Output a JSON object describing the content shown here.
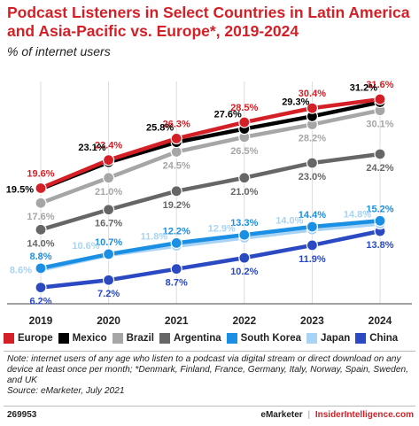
{
  "chart_data": {
    "type": "line",
    "title": "Podcast Listeners in Select Countries in Latin America and Asia-Pacific vs. Europe*, 2019-2024",
    "subtitle": "% of internet users",
    "categories": [
      "2019",
      "2020",
      "2021",
      "2022",
      "2023",
      "2024"
    ],
    "ylim": [
      4,
      34
    ],
    "grid": true,
    "legend_position": "bottom",
    "series": [
      {
        "name": "Europe",
        "color": "#d41f26",
        "values": [
          19.6,
          23.4,
          26.3,
          28.5,
          30.4,
          31.6
        ],
        "labels": [
          "19.6%",
          "23.4%",
          "26.3%",
          "28.5%",
          "30.4%",
          "31.6%"
        ]
      },
      {
        "name": "Mexico",
        "color": "#000000",
        "values": [
          19.5,
          23.1,
          25.8,
          27.6,
          29.3,
          31.2
        ],
        "labels": [
          "19.5%",
          "23.1%",
          "25.8%",
          "27.6%",
          "29.3%",
          "31.2%"
        ]
      },
      {
        "name": "Brazil",
        "color": "#a6a6a6",
        "values": [
          17.6,
          21.0,
          24.5,
          26.5,
          28.2,
          30.1
        ],
        "labels": [
          "17.6%",
          "21.0%",
          "24.5%",
          "26.5%",
          "28.2%",
          "30.1%"
        ]
      },
      {
        "name": "Argentina",
        "color": "#666666",
        "values": [
          14.0,
          16.7,
          19.2,
          21.0,
          23.0,
          24.2
        ],
        "labels": [
          "14.0%",
          "16.7%",
          "19.2%",
          "21.0%",
          "23.0%",
          "24.2%"
        ]
      },
      {
        "name": "South Korea",
        "color": "#1a8fe3",
        "values": [
          8.8,
          10.7,
          12.2,
          13.3,
          14.4,
          15.2
        ],
        "labels": [
          "8.8%",
          "10.7%",
          "12.2%",
          "13.3%",
          "14.4%",
          "15.2%"
        ]
      },
      {
        "name": "Japan",
        "color": "#a9d3f5",
        "values": [
          8.6,
          10.6,
          11.8,
          12.9,
          14.0,
          14.8
        ],
        "labels": [
          "8.6%",
          "10.6%",
          "11.8%",
          "12.9%",
          "14.0%",
          "14.8%"
        ]
      },
      {
        "name": "China",
        "color": "#2a49c2",
        "values": [
          6.2,
          7.2,
          8.7,
          10.2,
          11.9,
          13.8
        ],
        "labels": [
          "6.2%",
          "7.2%",
          "8.7%",
          "10.2%",
          "11.9%",
          "13.8%"
        ]
      }
    ]
  },
  "note": "Note: internet users of any age who listen to a podcast via digital stream or direct download on any device at least once per month; *Denmark, Finland, France, Germany, Italy, Norway, Spain, Sweden, and UK",
  "source": "Source: eMarketer, July 2021",
  "chart_id": "269953",
  "footer": {
    "brand": "eMarketer",
    "separator": "|",
    "site": "InsiderIntelligence.com"
  }
}
